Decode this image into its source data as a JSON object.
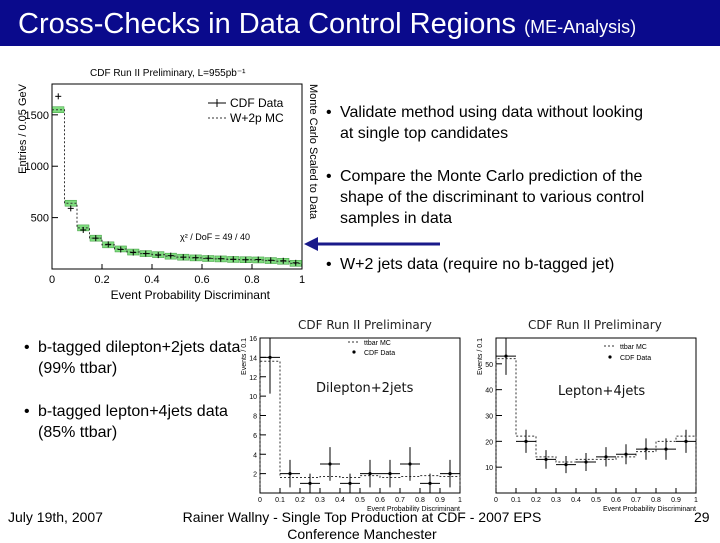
{
  "slide": {
    "title_main": "Cross-Checks in Data Control Regions ",
    "title_sub": "(ME-Analysis)",
    "bullets_right": [
      "Validate method using data without looking at single top candidates",
      "Compare the Monte Carlo prediction of the shape of the discriminant to various control samples in data",
      "W+2 jets data (require no b-tagged jet)"
    ],
    "bullets_left": [
      "b-tagged dilepton+2jets data (99% ttbar)",
      "b-tagged lepton+4jets data (85% ttbar)"
    ],
    "footer": {
      "date": "July  19th, 2007",
      "center_line1": "Rainer Wallny - Single Top Production at CDF  - 2007 EPS",
      "center_line2": "Conference Manchester",
      "page": "29"
    },
    "colors": {
      "title_bg": "#0a0a8c",
      "arrow": "#1a1a8a",
      "mc_fill": "#7fdc7f"
    }
  },
  "chart_data": [
    {
      "type": "histogram",
      "title": "CDF Run II Preliminary, L=955pb⁻¹",
      "xlabel": "Event Probability Discriminant",
      "ylabel": "Entries / 0.05 GeV",
      "right_label": "Monte Carlo Scaled to Data",
      "annotation": "χ² / DoF = 49 / 40",
      "xlim": [
        0,
        1
      ],
      "ylim": [
        0,
        1800
      ],
      "xticks": [
        "0",
        "0.2",
        "0.4",
        "0.6",
        "0.8",
        "1"
      ],
      "yticks": [
        "500",
        "1000",
        "1500"
      ],
      "ytick_values": [
        500,
        1000,
        1500
      ],
      "series": [
        {
          "name": "CDF Data",
          "values": [
            1680,
            590,
            380,
            300,
            240,
            190,
            160,
            150,
            135,
            130,
            115,
            110,
            105,
            100,
            95,
            90,
            92,
            85,
            80,
            60
          ]
        },
        {
          "name": "W+2p MC",
          "values": [
            1550,
            640,
            400,
            300,
            235,
            195,
            165,
            150,
            140,
            125,
            115,
            108,
            102,
            98,
            93,
            90,
            88,
            82,
            75,
            55
          ]
        }
      ]
    },
    {
      "type": "histogram",
      "title": "CDF Run II Preliminary",
      "tag": "Dilepton+2jets",
      "xlabel": "Event Probability Discriminant",
      "ylabel": "Events / 0.1",
      "xlim": [
        0,
        1
      ],
      "ylim": [
        0,
        16
      ],
      "xticks": [
        "0",
        "0.1",
        "0.2",
        "0.3",
        "0.4",
        "0.5",
        "0.6",
        "0.7",
        "0.8",
        "0.9",
        "1"
      ],
      "yticks": [
        "2",
        "4",
        "6",
        "8",
        "10",
        "12",
        "14",
        "16"
      ],
      "ytick_values": [
        2,
        4,
        6,
        8,
        10,
        12,
        14,
        16
      ],
      "series": [
        {
          "name": "ttbar MC",
          "values": [
            13.6,
            1.6,
            1.6,
            1.7,
            1.6,
            1.8,
            1.6,
            1.7,
            1.8,
            1.7
          ]
        },
        {
          "name": "CDF Data",
          "values": [
            14,
            2,
            1,
            3,
            1,
            2,
            2,
            3,
            1,
            2
          ]
        }
      ]
    },
    {
      "type": "histogram",
      "title": "CDF Run II Preliminary",
      "tag": "Lepton+4jets",
      "xlabel": "Event Probability Discriminant",
      "ylabel": "Events / 0.1",
      "xlim": [
        0,
        1
      ],
      "ylim": [
        0,
        60
      ],
      "xticks": [
        "0",
        "0.1",
        "0.2",
        "0.3",
        "0.4",
        "0.5",
        "0.6",
        "0.7",
        "0.8",
        "0.9",
        "1"
      ],
      "yticks": [
        "10",
        "20",
        "30",
        "40",
        "50"
      ],
      "ytick_values": [
        10,
        20,
        30,
        40,
        50
      ],
      "series": [
        {
          "name": "ttbar MC",
          "values": [
            52,
            22,
            14,
            12,
            13,
            13,
            14,
            16,
            20,
            22
          ]
        },
        {
          "name": "CDF Data",
          "values": [
            53,
            20,
            13,
            11,
            12,
            14,
            15,
            17,
            17,
            20
          ]
        }
      ]
    }
  ]
}
